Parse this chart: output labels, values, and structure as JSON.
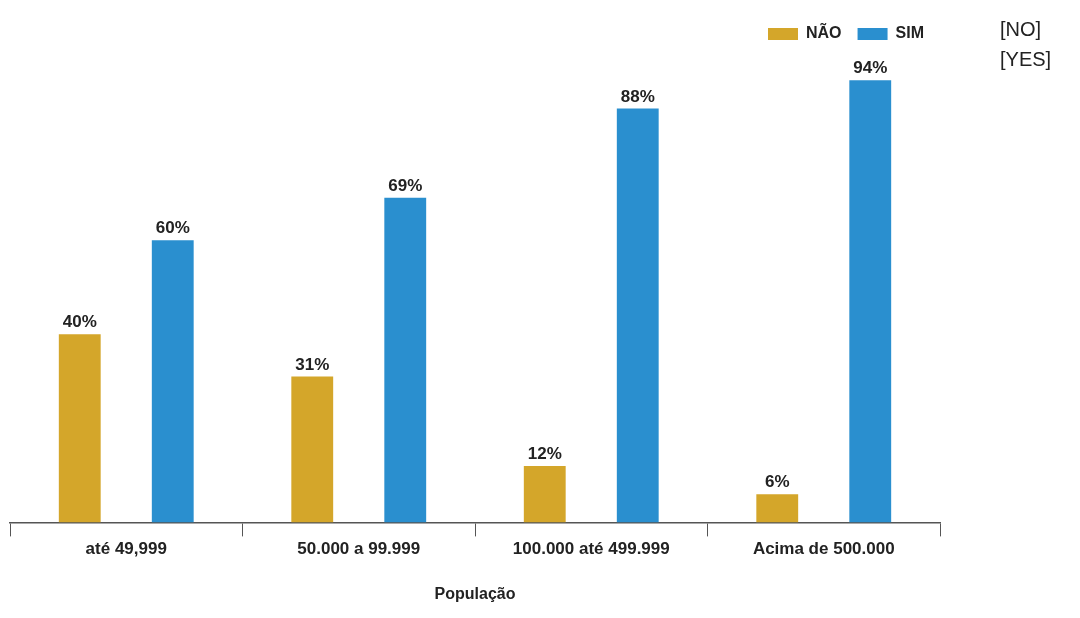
{
  "chart_data": {
    "type": "bar",
    "xlabel": "População",
    "categories": [
      "até 49,999",
      "50.000 a 99.999",
      "100.000 até 499.999",
      "Acima de 500.000"
    ],
    "series": [
      {
        "name": "NÃO",
        "color": "#d4a62a",
        "values": [
          40,
          31,
          12,
          6
        ],
        "value_labels": [
          "40%",
          "31%",
          "12%",
          "6%"
        ]
      },
      {
        "name": "SIM",
        "color": "#2a8fcf",
        "values": [
          60,
          69,
          88,
          94
        ],
        "value_labels": [
          "60%",
          "69%",
          "88%",
          "94%"
        ]
      }
    ],
    "grid": false,
    "legend": "top right",
    "tick_labels": "x",
    "annotations": [
      "[NO]",
      "[YES]"
    ]
  }
}
